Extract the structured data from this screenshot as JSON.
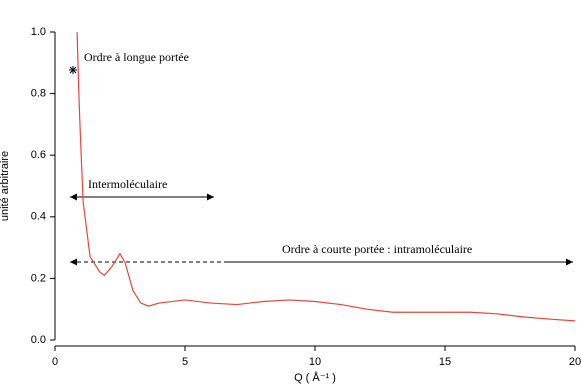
{
  "chart_data": {
    "type": "line",
    "x_label": "Q ( Å⁻¹ )",
    "y_label": "unité arbitraire",
    "annotations": [
      "Ordre à longue portée",
      "Intermoléculaire",
      "Ordre à courte portée : intramoléculaire"
    ],
    "xlim": [
      0,
      20
    ],
    "ylim": [
      0,
      1
    ],
    "xticks": [
      0,
      5,
      10,
      15,
      20
    ],
    "yticks": [
      {
        "value": 0,
        "label": "0.0"
      },
      0.2,
      0.4,
      0.6,
      0.8,
      {
        "value": 1,
        "label": "1.0"
      }
    ],
    "grid": false,
    "series": [
      {
        "color": "#e8453c",
        "x": [
          0.85,
          0.9,
          0.95,
          1.08,
          1.35,
          1.73,
          1.9,
          2.2,
          2.5,
          2.7,
          3.0,
          3.3,
          3.6,
          4,
          5,
          6,
          7,
          8,
          9,
          10,
          11,
          12,
          13,
          14,
          15,
          16,
          17,
          18,
          19,
          20
        ],
        "values": [
          1.0,
          0.85,
          0.72,
          0.45,
          0.27,
          0.22,
          0.21,
          0.24,
          0.28,
          0.25,
          0.16,
          0.12,
          0.11,
          0.12,
          0.13,
          0.12,
          0.115,
          0.125,
          0.13,
          0.125,
          0.115,
          0.1,
          0.09,
          0.09,
          0.09,
          0.09,
          0.085,
          0.075,
          0.068,
          0.062
        ]
      }
    ]
  }
}
